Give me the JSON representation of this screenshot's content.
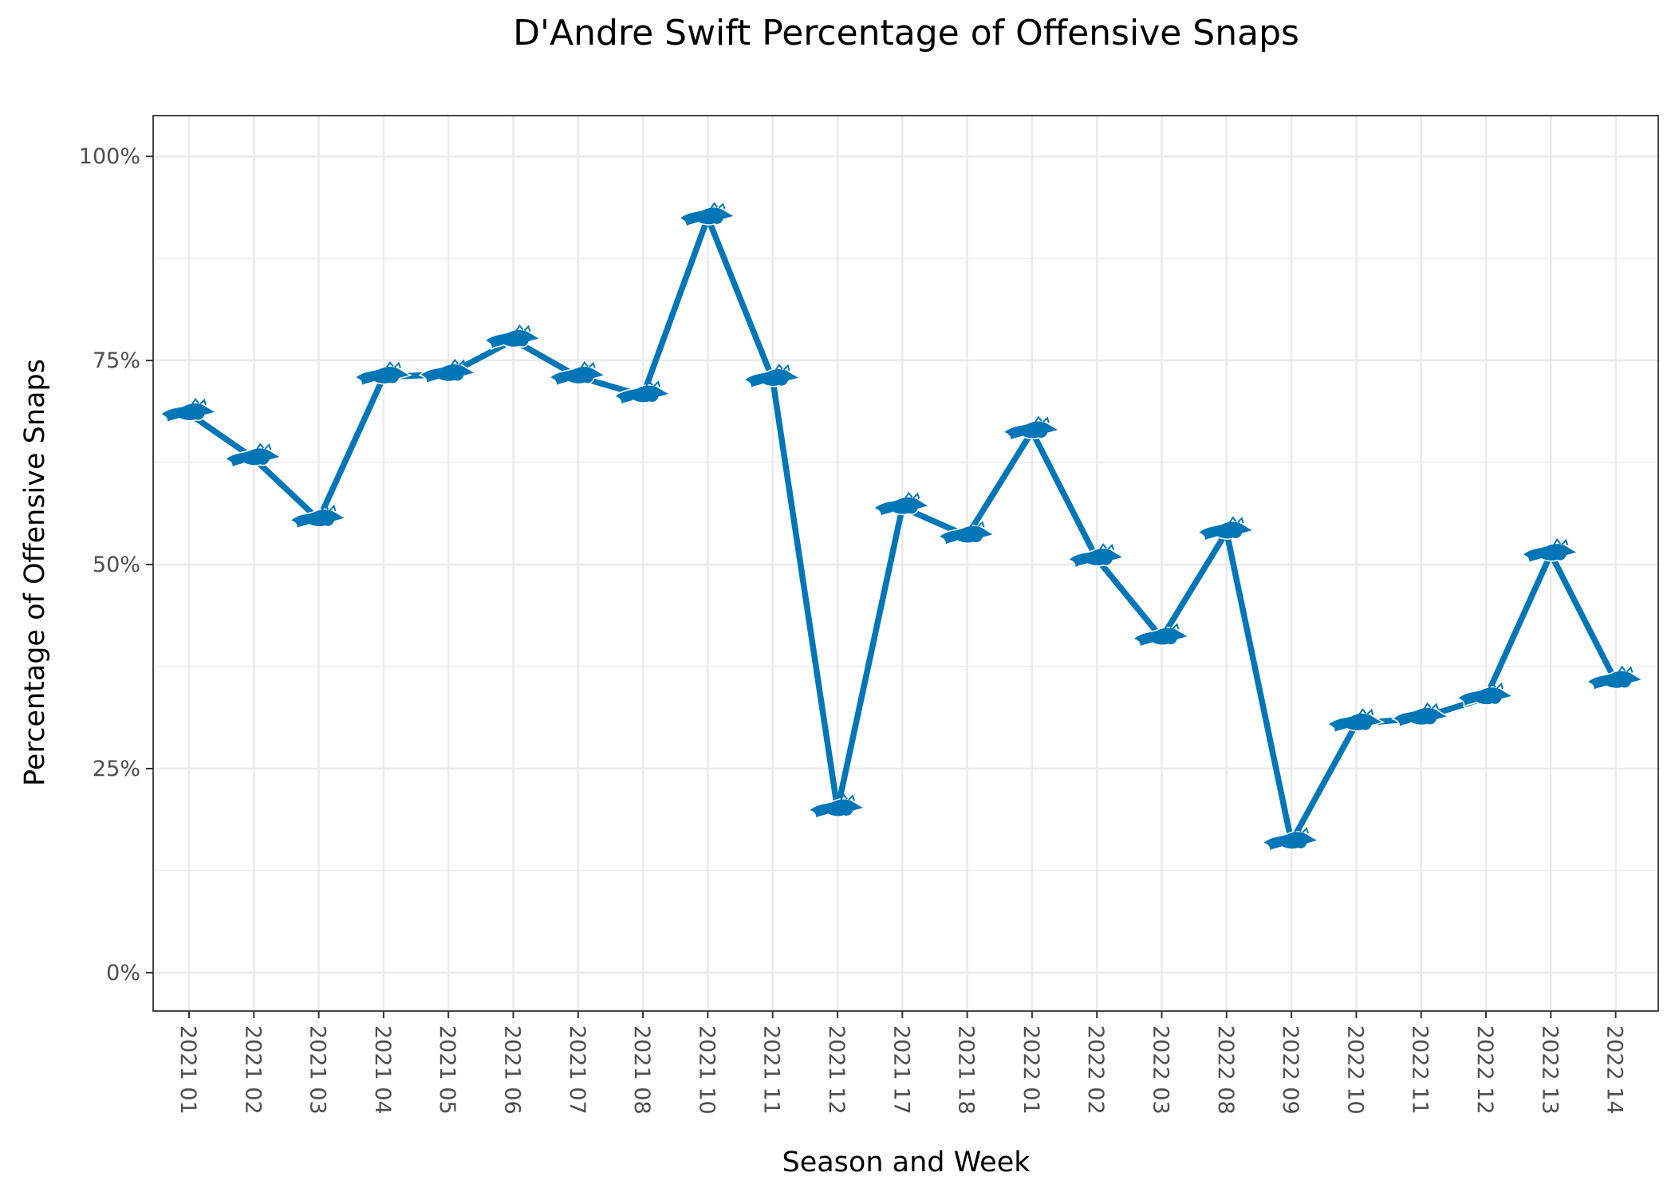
{
  "chart_data": {
    "type": "line",
    "title": "D'Andre Swift Percentage of Offensive Snaps",
    "xlabel": "Season and Week",
    "ylabel": "Percentage of Offensive Snaps",
    "categories": [
      "2021 01",
      "2021 02",
      "2021 03",
      "2021 04",
      "2021 05",
      "2021 06",
      "2021 07",
      "2021 08",
      "2021 10",
      "2021 11",
      "2021 12",
      "2021 17",
      "2021 18",
      "2022 01",
      "2022 02",
      "2022 03",
      "2022 08",
      "2022 09",
      "2022 10",
      "2022 11",
      "2022 12",
      "2022 13",
      "2022 14"
    ],
    "values": [
      68.5,
      63,
      55.5,
      73,
      73.3,
      77.5,
      73,
      70.7,
      92.5,
      72.7,
      20,
      57,
      53.5,
      66.3,
      50.7,
      41,
      54,
      16,
      30.5,
      31.2,
      33.7,
      51.3,
      35.7
    ],
    "ylim": [
      -4.7,
      105
    ],
    "yticks": [
      0,
      25,
      50,
      75,
      100
    ],
    "ytick_labels": [
      "0%",
      "25%",
      "50%",
      "75%",
      "100%"
    ],
    "grid": true,
    "line_color": "#0076B6",
    "marker_icon": "detroit-lions-logo-icon",
    "marker_color": "#0076B6"
  }
}
